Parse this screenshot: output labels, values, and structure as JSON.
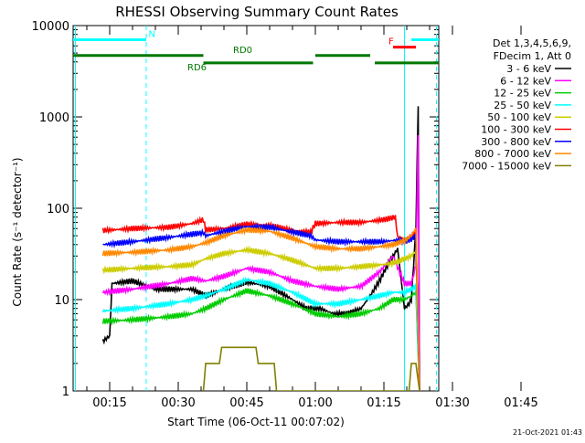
{
  "chart_data": {
    "type": "line",
    "title": "RHESSI Observing Summary Count Rates",
    "xlabel": "Start Time (06-Oct-11 00:07:02)",
    "ylabel": "Count Rate (s⁻¹ detector⁻¹)",
    "y_scale": "log",
    "ylim": [
      1,
      10000
    ],
    "xlim_minutes": [
      7.0,
      87.0
    ],
    "x_ticks": [
      "00:15",
      "00:30",
      "00:45",
      "01:00",
      "01:15",
      "01:30",
      "01:45"
    ],
    "y_ticks": [
      "1",
      "10",
      "100",
      "1000",
      "10000"
    ],
    "timestamp": "21-Oct-2021 01:43",
    "legend_header": [
      "Det 1,3,4,5,6,9,",
      "FDecim 1, Att 0"
    ],
    "series": [
      {
        "name": "3 - 6 keV",
        "color": "#000000",
        "points": [
          [
            13.5,
            3.5
          ],
          [
            15.0,
            4.0
          ],
          [
            15.5,
            15.0
          ],
          [
            20,
            16
          ],
          [
            25,
            13
          ],
          [
            28,
            13
          ],
          [
            31,
            13
          ],
          [
            33,
            13
          ],
          [
            36,
            11
          ],
          [
            40,
            13
          ],
          [
            45,
            15.5
          ],
          [
            50,
            14
          ],
          [
            55,
            10
          ],
          [
            58,
            8
          ],
          [
            61,
            8
          ],
          [
            64,
            7
          ],
          [
            67,
            7
          ],
          [
            70,
            8
          ],
          [
            72,
            11
          ],
          [
            74,
            16
          ],
          [
            76,
            25
          ],
          [
            78,
            36
          ],
          [
            79.5,
            8
          ],
          [
            80.5,
            9
          ],
          [
            81,
            10
          ],
          [
            82,
            60
          ],
          [
            82.5,
            1400
          ],
          [
            82.8,
            1
          ]
        ]
      },
      {
        "name": "6 - 12 keV",
        "color": "#ff00ff",
        "points": [
          [
            13.5,
            12
          ],
          [
            20,
            13
          ],
          [
            28,
            15
          ],
          [
            33,
            17
          ],
          [
            36,
            16
          ],
          [
            40,
            18
          ],
          [
            45,
            22
          ],
          [
            50,
            20
          ],
          [
            55,
            16
          ],
          [
            60,
            14
          ],
          [
            65,
            13
          ],
          [
            70,
            14
          ],
          [
            74,
            20
          ],
          [
            77,
            30
          ],
          [
            79.5,
            15
          ],
          [
            81,
            15
          ],
          [
            82,
            24
          ],
          [
            82.5,
            650
          ],
          [
            82.8,
            1
          ]
        ]
      },
      {
        "name": "12 - 25 keV",
        "color": "#00cc00",
        "points": [
          [
            13.5,
            5.8
          ],
          [
            20,
            6.0
          ],
          [
            28,
            6.5
          ],
          [
            33,
            7.0
          ],
          [
            36,
            8
          ],
          [
            40,
            10
          ],
          [
            45,
            12.5
          ],
          [
            50,
            11
          ],
          [
            55,
            9
          ],
          [
            60,
            7
          ],
          [
            65,
            6.5
          ],
          [
            70,
            7
          ],
          [
            74,
            8
          ],
          [
            77,
            10
          ],
          [
            79.5,
            10
          ],
          [
            81,
            11
          ],
          [
            82,
            12
          ],
          [
            82.8,
            1
          ]
        ]
      },
      {
        "name": "25 - 50 keV",
        "color": "#00ffff",
        "points": [
          [
            13.5,
            7.5
          ],
          [
            20,
            8.0
          ],
          [
            28,
            9
          ],
          [
            33,
            10
          ],
          [
            36,
            11
          ],
          [
            40,
            13
          ],
          [
            45,
            16.5
          ],
          [
            50,
            15
          ],
          [
            55,
            12
          ],
          [
            60,
            9
          ],
          [
            65,
            9
          ],
          [
            70,
            10
          ],
          [
            74,
            11
          ],
          [
            77,
            12
          ],
          [
            79.5,
            12
          ],
          [
            81,
            13
          ],
          [
            82,
            14
          ],
          [
            82.8,
            1
          ]
        ]
      },
      {
        "name": "50 - 100 keV",
        "color": "#cccc00",
        "points": [
          [
            13.5,
            21
          ],
          [
            20,
            22
          ],
          [
            28,
            23
          ],
          [
            33,
            24
          ],
          [
            36,
            28
          ],
          [
            40,
            32
          ],
          [
            45,
            35
          ],
          [
            50,
            32
          ],
          [
            55,
            27
          ],
          [
            60,
            22
          ],
          [
            65,
            22
          ],
          [
            70,
            23
          ],
          [
            74,
            24
          ],
          [
            77,
            25
          ],
          [
            79.5,
            28
          ],
          [
            81,
            30
          ],
          [
            82,
            34
          ],
          [
            82.8,
            1
          ]
        ]
      },
      {
        "name": "100 - 300 keV",
        "color": "#ff0000",
        "points": [
          [
            13.5,
            57
          ],
          [
            20,
            60
          ],
          [
            28,
            62
          ],
          [
            33,
            68
          ],
          [
            35.5,
            75
          ],
          [
            36,
            58
          ],
          [
            40,
            60
          ],
          [
            45,
            67
          ],
          [
            50,
            65
          ],
          [
            55,
            57
          ],
          [
            59,
            55
          ],
          [
            60,
            68
          ],
          [
            65,
            70
          ],
          [
            70,
            70
          ],
          [
            75,
            75
          ],
          [
            77.5,
            80
          ],
          [
            78,
            48
          ],
          [
            79.5,
            46
          ],
          [
            81,
            50
          ],
          [
            82,
            55
          ],
          [
            82.8,
            1
          ]
        ]
      },
      {
        "name": "300 - 800 keV",
        "color": "#0000ff",
        "points": [
          [
            13.5,
            40
          ],
          [
            20,
            43
          ],
          [
            28,
            48
          ],
          [
            33,
            52
          ],
          [
            35.5,
            54
          ],
          [
            36,
            50
          ],
          [
            40,
            56
          ],
          [
            45,
            63
          ],
          [
            50,
            62
          ],
          [
            55,
            55
          ],
          [
            59,
            50
          ],
          [
            60,
            45
          ],
          [
            65,
            43
          ],
          [
            70,
            43
          ],
          [
            75,
            43
          ],
          [
            78,
            45
          ],
          [
            79.5,
            43
          ],
          [
            81,
            46
          ],
          [
            82,
            50
          ],
          [
            82.8,
            1
          ]
        ]
      },
      {
        "name": "800 - 7000 keV",
        "color": "#ff8800",
        "points": [
          [
            13.5,
            32
          ],
          [
            20,
            33
          ],
          [
            28,
            35
          ],
          [
            33,
            38
          ],
          [
            36,
            42
          ],
          [
            40,
            50
          ],
          [
            45,
            58
          ],
          [
            50,
            56
          ],
          [
            55,
            47
          ],
          [
            60,
            38
          ],
          [
            65,
            36
          ],
          [
            70,
            36
          ],
          [
            74,
            38
          ],
          [
            77,
            40
          ],
          [
            79.5,
            44
          ],
          [
            81,
            50
          ],
          [
            82,
            60
          ],
          [
            82.8,
            1
          ]
        ]
      },
      {
        "name": "7000 - 15000 keV",
        "color": "#808000",
        "points": [
          [
            35.5,
            1
          ],
          [
            36,
            2
          ],
          [
            39,
            2
          ],
          [
            39.5,
            3
          ],
          [
            47,
            3
          ],
          [
            47.5,
            2
          ],
          [
            51,
            2
          ],
          [
            51.5,
            1
          ],
          [
            80.5,
            1
          ],
          [
            81,
            2
          ],
          [
            82,
            2
          ],
          [
            82.8,
            1
          ]
        ]
      }
    ],
    "flags": [
      {
        "label": "N",
        "color": "#00ffff",
        "segments": [
          [
            7.0,
            23.0
          ],
          [
            81.0,
            87.0
          ]
        ],
        "value": 7000
      },
      {
        "label": "F",
        "color": "#ff0000",
        "segments": [
          [
            77.0,
            82.0
          ]
        ],
        "value": 5800
      },
      {
        "label": "RD0",
        "color": "#007700",
        "segments": [
          [
            7.0,
            35.5
          ],
          [
            60.0,
            72.0
          ]
        ],
        "value": 4700
      },
      {
        "label": "RD6",
        "color": "#007700",
        "segments": [
          [
            35.5,
            59.5
          ],
          [
            73.0,
            87.0
          ]
        ],
        "value": 3900
      }
    ],
    "attenuator_lines_minutes": [
      7.5,
      23.0,
      79.5,
      86.5
    ],
    "flag_labels_minutes": {
      "N": 23.5,
      "F": 76.0,
      "RD0": 42.0,
      "RD6": 32.0
    }
  }
}
